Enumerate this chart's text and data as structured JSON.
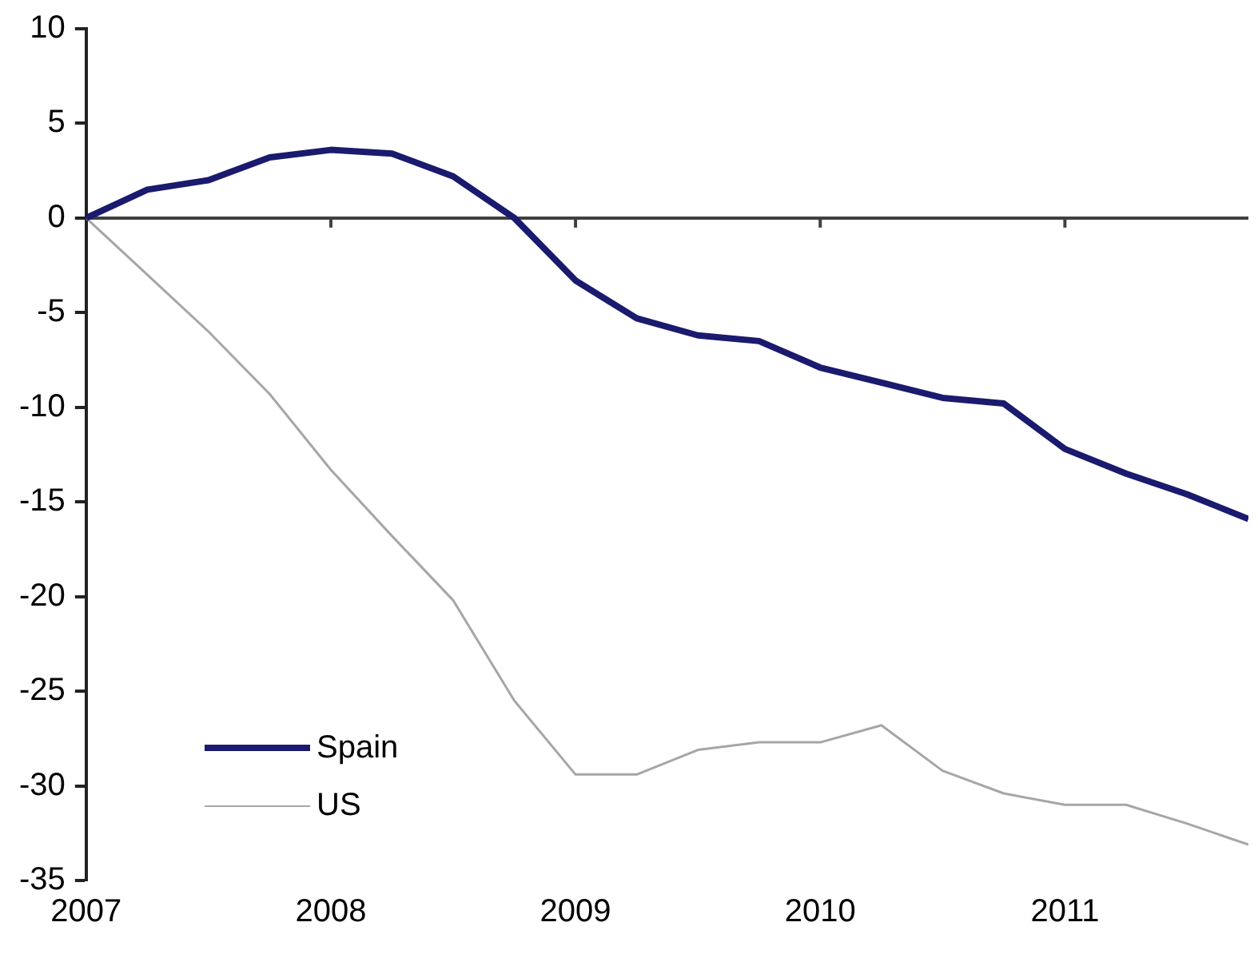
{
  "chart_data": {
    "type": "line",
    "x": [
      2007,
      2007.25,
      2007.5,
      2007.75,
      2008,
      2008.25,
      2008.5,
      2008.75,
      2009,
      2009.25,
      2009.5,
      2009.75,
      2010,
      2010.25,
      2010.5,
      2010.75,
      2011,
      2011.25,
      2011.5,
      2011.75
    ],
    "series": [
      {
        "name": "Spain",
        "color": "#1a1a6e",
        "values": [
          0,
          1.5,
          2.0,
          3.2,
          3.6,
          3.4,
          2.2,
          0,
          -3.3,
          -5.3,
          -6.2,
          -6.5,
          -7.9,
          -8.7,
          -9.5,
          -9.8,
          -12.2,
          -13.5,
          -14.6,
          -15.9
        ]
      },
      {
        "name": "US",
        "color": "#a6a6a6",
        "values": [
          0,
          -3,
          -6,
          -9.3,
          -13.3,
          -16.8,
          -20.2,
          -25.5,
          -29.4,
          -29.4,
          -28.1,
          -27.7,
          -27.7,
          -26.8,
          -29.2,
          -30.4,
          -31.0,
          -31.0,
          -32.0,
          -33.1
        ]
      }
    ],
    "xlim": [
      2007,
      2011.75
    ],
    "xticks": [
      2007,
      2008,
      2009,
      2010,
      2011
    ],
    "ylim": [
      -35,
      10
    ],
    "yticks": [
      -35,
      -30,
      -25,
      -20,
      -15,
      -10,
      -5,
      0,
      5,
      10
    ],
    "ref_lines": [
      {
        "axis": "y",
        "value": 0,
        "color": "#404040"
      }
    ],
    "grid": false,
    "legend": "bottom left",
    "marker": "none",
    "line_style": "solid"
  }
}
